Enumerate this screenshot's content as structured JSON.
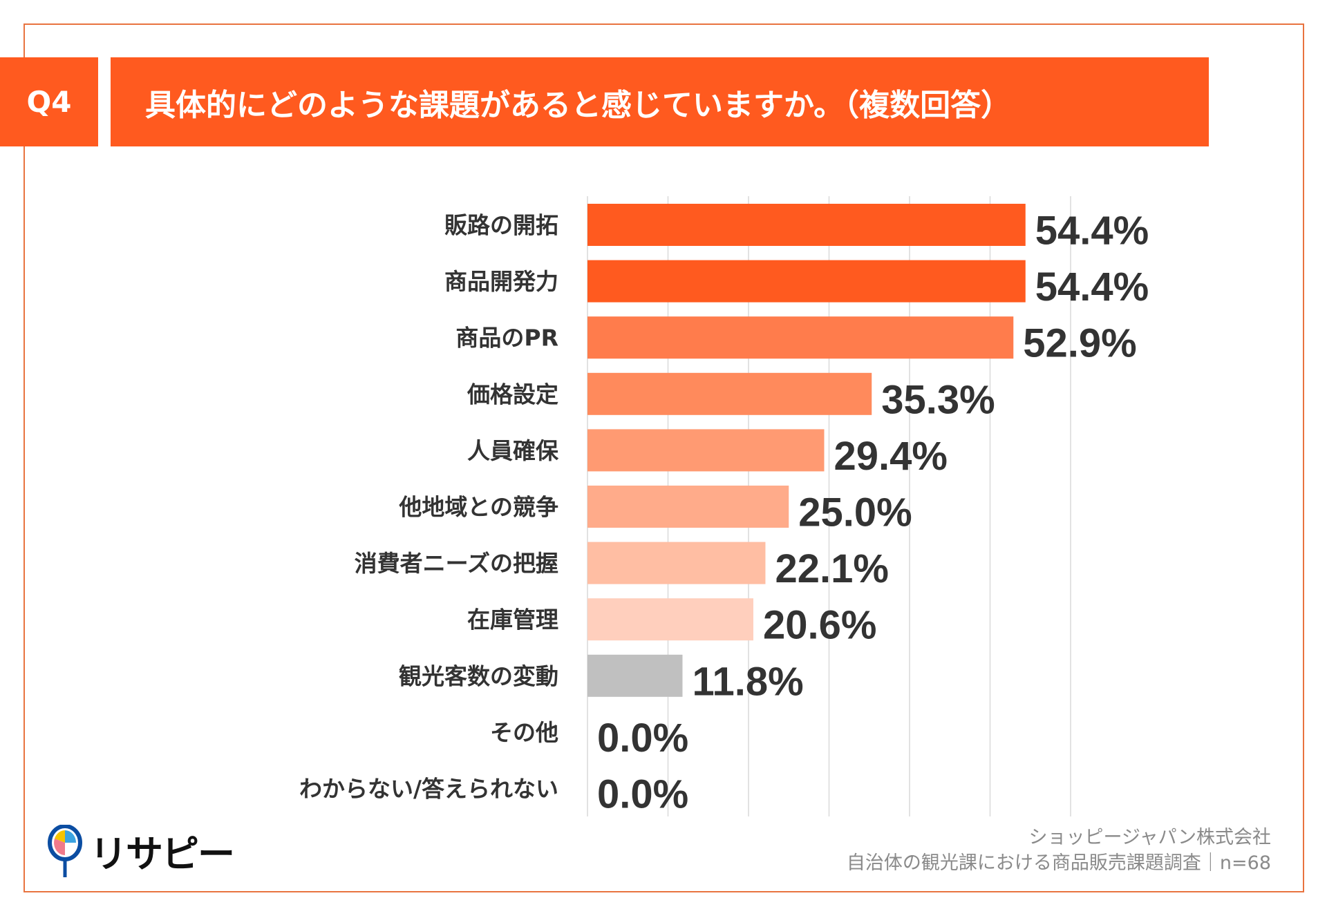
{
  "header": {
    "question_no": "Q4",
    "title": "具体的にどのような課題があると感じていますか。（複数回答）"
  },
  "chart_data": {
    "type": "bar",
    "orientation": "horizontal",
    "categories": [
      "販路の開拓",
      "商品開発力",
      "商品のPR",
      "価格設定",
      "人員確保",
      "他地域との競争",
      "消費者ニーズの把握",
      "在庫管理",
      "観光客数の変動",
      "その他",
      "わからない/答えられない"
    ],
    "values": [
      54.4,
      54.4,
      52.9,
      35.3,
      29.4,
      25.0,
      22.1,
      20.6,
      11.8,
      0.0,
      0.0
    ],
    "value_labels": [
      "54.4%",
      "54.4%",
      "52.9%",
      "35.3%",
      "29.4%",
      "25.0%",
      "22.1%",
      "20.6%",
      "11.8%",
      "0.0%",
      "0.0%"
    ],
    "colors": [
      "#FF5A1F",
      "#FF5A1F",
      "#FF7C4C",
      "#FF8A5C",
      "#FF9A72",
      "#FFAB8A",
      "#FFBEA3",
      "#FFCFBD",
      "#C0C0C0",
      "#C0C0C0",
      "#C0C0C0"
    ],
    "xlim": [
      0,
      60
    ],
    "grid": true
  },
  "footer": {
    "company": "ショッピージャパン株式会社",
    "survey": "自治体の観光課における商品販売課題調査｜n=68"
  },
  "logo": {
    "text": "リサピー"
  }
}
